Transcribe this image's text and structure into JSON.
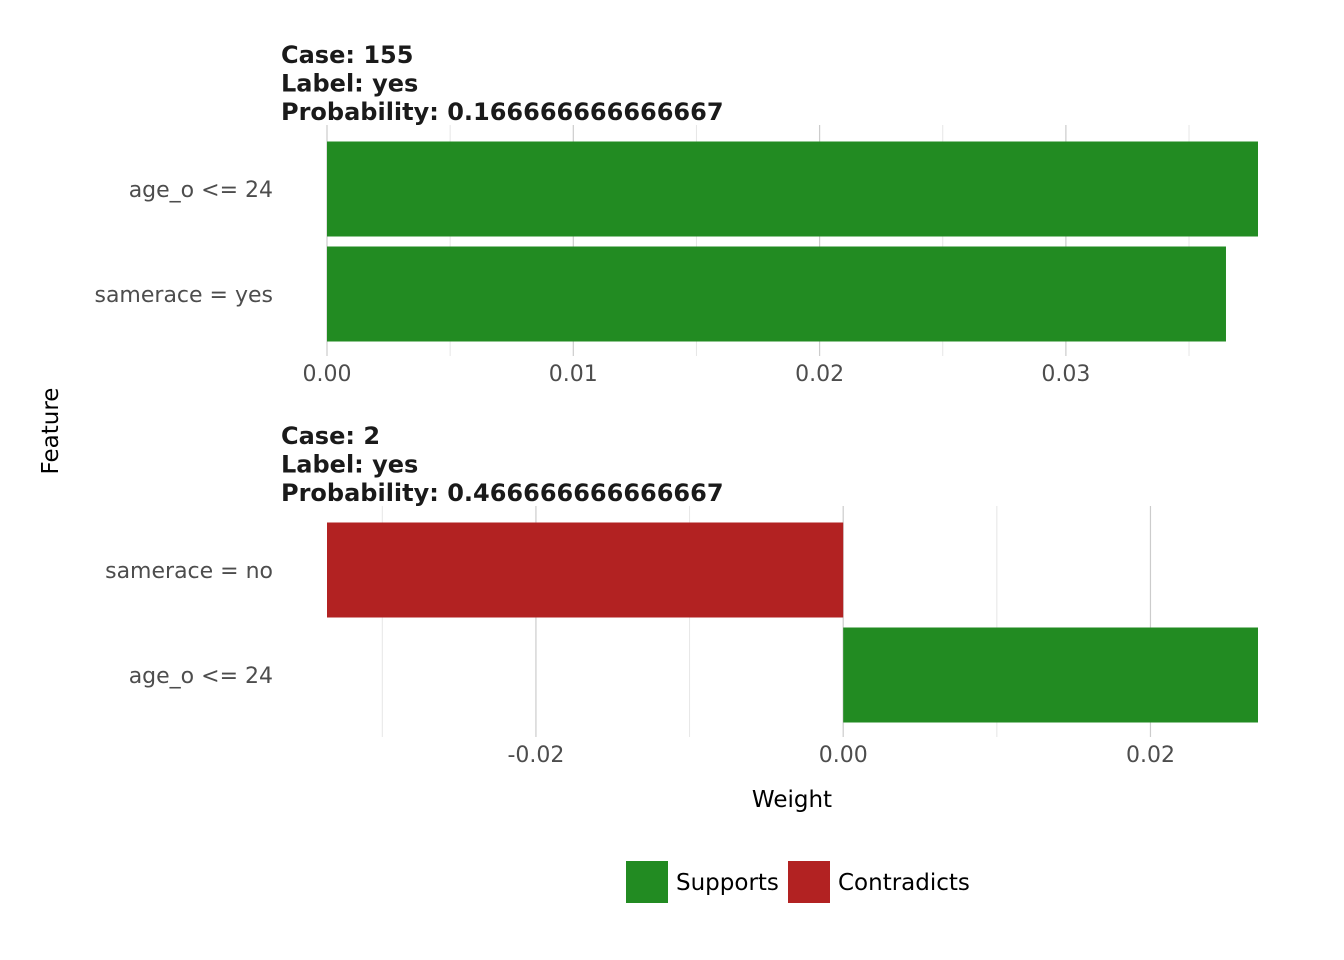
{
  "chart_data": [
    {
      "type": "bar",
      "orientation": "horizontal",
      "title_lines": [
        "Case: 155",
        "Label: yes",
        "Probability: 0.166666666666667"
      ],
      "categories": [
        "age_o <= 24",
        "samerace = yes"
      ],
      "values": [
        0.0378,
        0.0365
      ],
      "support": [
        "Supports",
        "Supports"
      ],
      "xlim": [
        0.0,
        0.0378
      ],
      "major_ticks": [
        0.0,
        0.01,
        0.02,
        0.03
      ],
      "tick_labels": [
        "0.00",
        "0.01",
        "0.02",
        "0.03"
      ],
      "minor_ticks": [
        0.005,
        0.015,
        0.025,
        0.035
      ]
    },
    {
      "type": "bar",
      "orientation": "horizontal",
      "title_lines": [
        "Case: 2",
        "Label: yes",
        "Probability: 0.466666666666667"
      ],
      "categories": [
        "samerace = no",
        "age_o <= 24"
      ],
      "values": [
        -0.0336,
        0.027
      ],
      "support": [
        "Contradicts",
        "Supports"
      ],
      "xlim": [
        -0.0336,
        0.027
      ],
      "major_ticks": [
        -0.02,
        0.0,
        0.02
      ],
      "tick_labels": [
        "-0.02",
        "0.00",
        "0.02"
      ],
      "minor_ticks": [
        -0.03,
        -0.01,
        0.01
      ]
    }
  ],
  "axes": {
    "xlabel": "Weight",
    "ylabel": "Feature"
  },
  "legend": {
    "position": "bottom",
    "items": [
      {
        "label": "Supports",
        "color": "#228b22"
      },
      {
        "label": "Contradicts",
        "color": "#b22222"
      }
    ]
  },
  "colors": {
    "Supports": "#228b22",
    "Contradicts": "#b22222",
    "grid_major": "#cccccc",
    "grid_minor": "#e6e6e6"
  }
}
